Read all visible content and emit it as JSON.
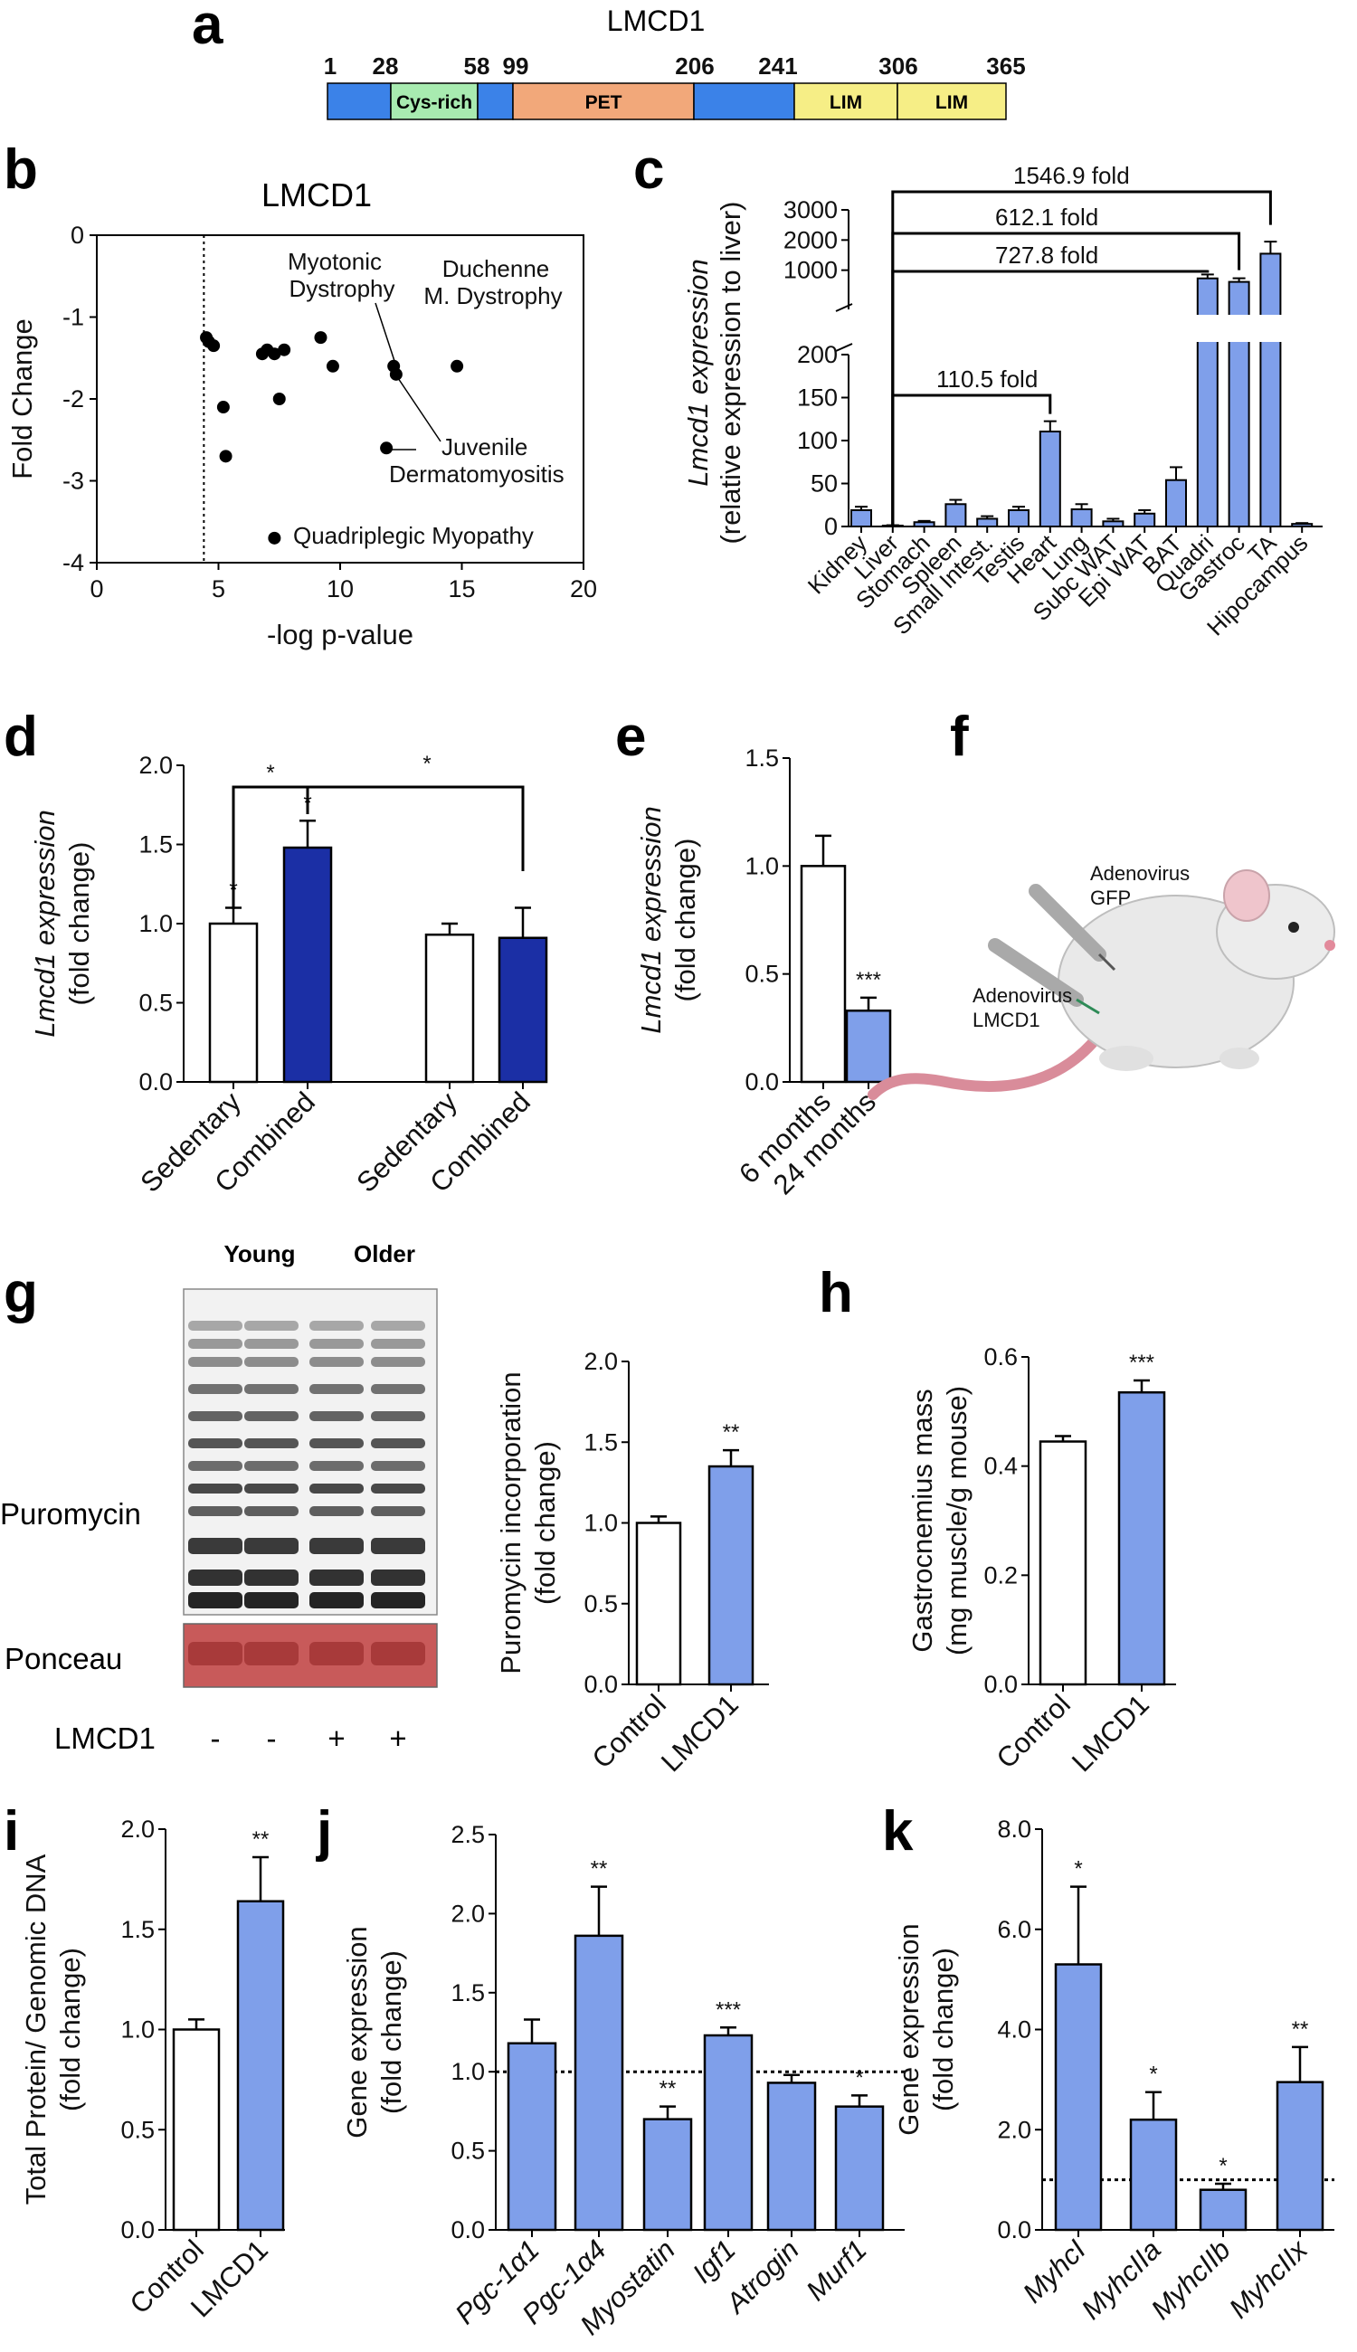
{
  "colors": {
    "blue_light": "#7F9FEA",
    "blue_dark": "#1B2FA5",
    "white": "#ffffff",
    "black": "#000000"
  },
  "panel_labels": [
    "a",
    "b",
    "c",
    "d",
    "e",
    "f",
    "g",
    "h",
    "i",
    "j",
    "k"
  ],
  "panel_a": {
    "title": "LMCD1",
    "positions": [
      "1",
      "28",
      "58",
      "99",
      "206",
      "241",
      "306",
      "365"
    ],
    "domains": [
      {
        "label": "",
        "color": "#3B82E8"
      },
      {
        "label": "Cys-rich",
        "color": "#A8EBB0"
      },
      {
        "label": "",
        "color": "#3B82E8"
      },
      {
        "label": "PET",
        "color": "#F2A87A"
      },
      {
        "label": "",
        "color": "#3B82E8"
      },
      {
        "label": "LIM",
        "color": "#F6EE86"
      },
      {
        "label": "LIM",
        "color": "#F6EE86"
      }
    ]
  },
  "chart_data": [
    {
      "id": "b",
      "type": "scatter",
      "title": "LMCD1",
      "xlabel": "-log p-value",
      "ylabel": "Fold Change",
      "xlim": [
        0,
        20
      ],
      "ylim": [
        -4,
        0
      ],
      "xticks": [
        "0",
        "5",
        "10",
        "15",
        "20"
      ],
      "yticks": [
        "0",
        "-1",
        "-2",
        "-3",
        "-4"
      ],
      "threshold_x": 4.4,
      "points": [
        {
          "x": 4.5,
          "y": -1.25
        },
        {
          "x": 4.6,
          "y": -1.3
        },
        {
          "x": 4.8,
          "y": -1.35
        },
        {
          "x": 5.2,
          "y": -2.1
        },
        {
          "x": 5.3,
          "y": -2.7
        },
        {
          "x": 6.8,
          "y": -1.45
        },
        {
          "x": 7.0,
          "y": -1.4
        },
        {
          "x": 7.3,
          "y": -1.45
        },
        {
          "x": 7.5,
          "y": -2.0
        },
        {
          "x": 7.7,
          "y": -1.4
        },
        {
          "x": 9.2,
          "y": -1.25
        },
        {
          "x": 9.7,
          "y": -1.6
        },
        {
          "x": 12.2,
          "y": -1.6
        },
        {
          "x": 12.3,
          "y": -1.7
        },
        {
          "x": 14.8,
          "y": -1.6
        },
        {
          "x": 11.9,
          "y": -2.6
        },
        {
          "x": 7.3,
          "y": -3.7
        }
      ],
      "annotations": {
        "myotonic_1": "Myotonic",
        "myotonic_2": "Dystrophy",
        "duchenne_1": "Duchenne",
        "duchenne_2": "M. Dystrophy",
        "juvenile_1": "Juvenile",
        "juvenile_2": "Dermatomyositis",
        "quad": "Quadriplegic Myopathy"
      }
    },
    {
      "id": "c",
      "type": "bar",
      "ylabel_1": "Lmcd1 expression",
      "ylabel_2": "(relative expression to liver)",
      "broken_axis": true,
      "yticks_lower": [
        "0",
        "50",
        "100",
        "150",
        "200"
      ],
      "yticks_upper": [
        "1000",
        "2000",
        "3000"
      ],
      "categories": [
        "Kidney",
        "Liver",
        "Stomach",
        "Spleen",
        "Small Intest.",
        "Testis",
        "Heart",
        "Lung",
        "Subc WAT",
        "Epi WAT",
        "BAT",
        "Quadri",
        "Gastroc",
        "TA",
        "Hipocampus"
      ],
      "values": [
        19,
        1,
        5,
        26,
        9,
        19,
        110.5,
        20,
        6,
        15,
        54,
        727.8,
        612.1,
        1546.9,
        3
      ],
      "errors": [
        4,
        0.5,
        1.5,
        5,
        3,
        4,
        12,
        6,
        3,
        4,
        15,
        130,
        120,
        400,
        1
      ],
      "brackets": [
        "1546.9 fold",
        "612.1 fold",
        "727.8 fold",
        "110.5 fold"
      ]
    },
    {
      "id": "d",
      "type": "bar",
      "ylabel_1": "Lmcd1 expression",
      "ylabel_2": "(fold change)",
      "ylim": [
        0,
        2.0
      ],
      "yticks": [
        "0.0",
        "0.5",
        "1.0",
        "1.5",
        "2.0"
      ],
      "categories": [
        "Sedentary",
        "Combined",
        "Sedentary",
        "Combined"
      ],
      "values": [
        1.0,
        1.48,
        0.93,
        0.91
      ],
      "errors": [
        0.1,
        0.17,
        0.07,
        0.19
      ],
      "sig": [
        "*",
        "*"
      ]
    },
    {
      "id": "e",
      "type": "bar",
      "ylabel_1": "Lmcd1 expression",
      "ylabel_2": "(fold change)",
      "ylim": [
        0,
        1.5
      ],
      "yticks": [
        "0.0",
        "0.5",
        "1.0",
        "1.5"
      ],
      "categories": [
        "6 months",
        "24 months"
      ],
      "values": [
        1.0,
        0.33
      ],
      "errors": [
        0.14,
        0.06
      ],
      "sig": [
        "",
        "***"
      ]
    },
    {
      "id": "g",
      "type": "bar",
      "ylabel_1": "Puromycin incorporation",
      "ylabel_2": "(fold change)",
      "ylim": [
        0,
        2.0
      ],
      "yticks": [
        "0.0",
        "0.5",
        "1.0",
        "1.5",
        "2.0"
      ],
      "categories": [
        "Control",
        "LMCD1"
      ],
      "values": [
        1.0,
        1.35
      ],
      "errors": [
        0.04,
        0.1
      ],
      "sig": [
        "",
        "**"
      ]
    },
    {
      "id": "h",
      "type": "bar",
      "ylabel_1": "Gastrocnemius mass",
      "ylabel_2": "(mg muscle/g mouse)",
      "ylim": [
        0,
        0.6
      ],
      "yticks": [
        "0.0",
        "0.2",
        "0.4",
        "0.6"
      ],
      "categories": [
        "Control",
        "LMCD1"
      ],
      "values": [
        0.445,
        0.535
      ],
      "errors": [
        0.01,
        0.022
      ],
      "sig": [
        "",
        "***"
      ]
    },
    {
      "id": "i",
      "type": "bar",
      "ylabel_1": "Total Protein/ Genomic DNA",
      "ylabel_2": "(fold change)",
      "ylim": [
        0,
        2.0
      ],
      "yticks": [
        "0.0",
        "0.5",
        "1.0",
        "1.5",
        "2.0"
      ],
      "categories": [
        "Control",
        "LMCD1"
      ],
      "values": [
        1.0,
        1.64
      ],
      "errors": [
        0.05,
        0.22
      ],
      "sig": [
        "",
        "**"
      ]
    },
    {
      "id": "j",
      "type": "bar",
      "ylabel_1": "Gene expression",
      "ylabel_2": "(fold change)",
      "ylim": [
        0,
        2.5
      ],
      "yticks": [
        "0.0",
        "0.5",
        "1.0",
        "1.5",
        "2.0",
        "2.5"
      ],
      "categories": [
        "Pgc-1α1",
        "Pgc-1α4",
        "Myostatin",
        "Igf1",
        "Atrogin",
        "Murf1"
      ],
      "values": [
        1.18,
        1.86,
        0.7,
        1.23,
        0.93,
        0.78
      ],
      "errors": [
        0.15,
        0.31,
        0.08,
        0.05,
        0.05,
        0.07
      ],
      "sig": [
        "",
        "**",
        "**",
        "***",
        "",
        "*"
      ],
      "reference_line": 1.0
    },
    {
      "id": "k",
      "type": "bar",
      "ylabel_1": "Gene expression",
      "ylabel_2": "(fold change)",
      "ylim": [
        0,
        8.0
      ],
      "yticks": [
        "0.0",
        "2.0",
        "4.0",
        "6.0",
        "8.0"
      ],
      "categories": [
        "MyhcI",
        "MyhcIIa",
        "MyhcIIb",
        "MyhcIIx"
      ],
      "values": [
        5.3,
        2.2,
        0.8,
        2.95
      ],
      "errors": [
        1.55,
        0.55,
        0.12,
        0.7
      ],
      "sig": [
        "*",
        "*",
        "*",
        "**"
      ],
      "reference_line": 1.0
    }
  ],
  "panel_f": {
    "label_gfp_1": "Adenovirus",
    "label_gfp_2": "GFP",
    "label_lmcd1_1": "Adenovirus",
    "label_lmcd1_2": "LMCD1"
  },
  "panel_g_blot": {
    "young": "Young",
    "older": "Older",
    "puromycin": "Puromycin",
    "ponceau": "Ponceau",
    "lmcd1_row": "LMCD1",
    "lanes": [
      "-",
      "-",
      "+",
      "+"
    ]
  }
}
